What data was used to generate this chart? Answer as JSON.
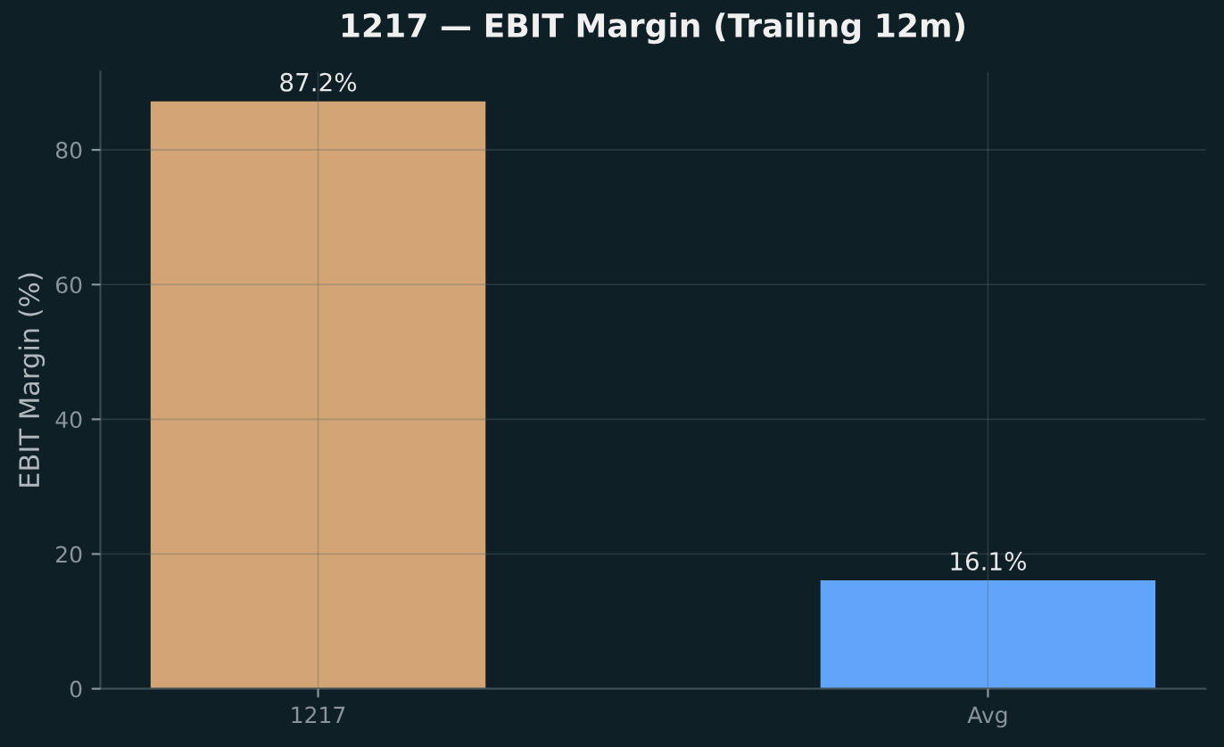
{
  "chart_data": {
    "type": "bar",
    "title": "1217 — EBIT Margin (Trailing 12m)",
    "ylabel": "EBIT Margin (%)",
    "categories": [
      "1217",
      "Avg"
    ],
    "values": [
      87.2,
      16.1
    ],
    "colors": [
      "#d4a574",
      "#60a5fa"
    ],
    "value_labels": [
      "87.2%",
      "16.1%"
    ],
    "ylim": [
      0,
      91.6
    ],
    "yticks": [
      0,
      20,
      40,
      60,
      80
    ],
    "grid": true
  }
}
